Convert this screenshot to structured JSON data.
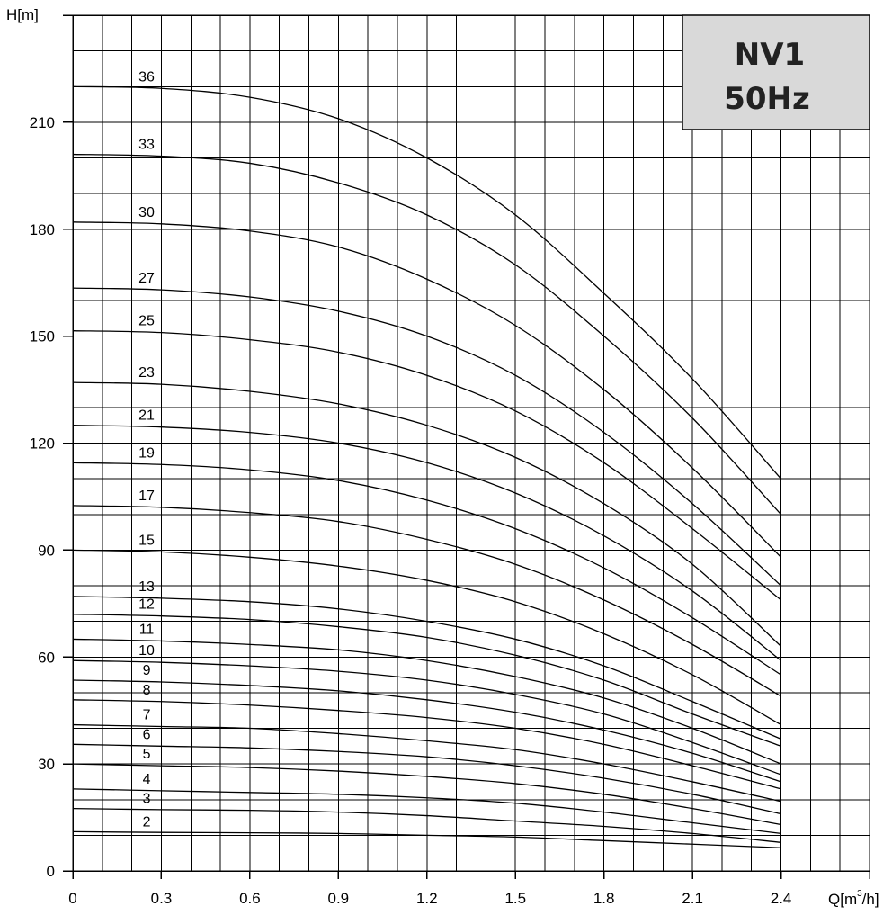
{
  "chart_data": {
    "type": "line",
    "title_box": {
      "line1": "NV1",
      "line2": "50Hz",
      "fill": "#d9d9d9"
    },
    "xlabel": "Q[m³/h]",
    "xlabel_parts": {
      "main": "Q[m",
      "sup": "3",
      "tail": "/h]"
    },
    "ylabel": "H[m]",
    "xlim": [
      0,
      2.7
    ],
    "ylim": [
      0,
      240
    ],
    "x_ticks": [
      0,
      0.3,
      0.6,
      0.9,
      1.2,
      1.5,
      1.8,
      2.1,
      2.4
    ],
    "x_tick_labels": [
      "0",
      "0.3",
      "0.6",
      "0.9",
      "1.2",
      "1.5",
      "1.8",
      "2.1",
      "2.4"
    ],
    "y_ticks": [
      0,
      30,
      60,
      90,
      120,
      150,
      180,
      210
    ],
    "y_tick_labels": [
      "0",
      "30",
      "60",
      "90",
      "120",
      "150",
      "180",
      "210"
    ],
    "grid": true,
    "series": [
      {
        "name": "36",
        "x": [
          0,
          0.3,
          0.6,
          0.9,
          1.2,
          1.5,
          1.8,
          2.1,
          2.4
        ],
        "y": [
          220,
          219.5,
          217,
          211,
          200,
          184,
          162,
          138,
          110
        ]
      },
      {
        "name": "33",
        "x": [
          0,
          0.3,
          0.6,
          0.9,
          1.2,
          1.5,
          1.8,
          2.1,
          2.4
        ],
        "y": [
          201,
          200.5,
          198.5,
          193,
          184,
          170,
          150,
          127,
          100
        ]
      },
      {
        "name": "30",
        "x": [
          0,
          0.3,
          0.6,
          0.9,
          1.2,
          1.5,
          1.8,
          2.1,
          2.4
        ],
        "y": [
          182,
          181.5,
          179.5,
          175,
          166,
          153,
          135,
          113,
          88
        ]
      },
      {
        "name": "27",
        "x": [
          0,
          0.3,
          0.6,
          0.9,
          1.2,
          1.5,
          1.8,
          2.1,
          2.4
        ],
        "y": [
          163.5,
          163,
          161,
          157,
          150,
          139,
          123,
          103,
          80
        ]
      },
      {
        "name": "25",
        "x": [
          0,
          0.3,
          0.6,
          0.9,
          1.2,
          1.5,
          1.8,
          2.1,
          2.4
        ],
        "y": [
          151.5,
          151,
          149,
          145.5,
          139,
          129,
          114.5,
          96,
          76
        ]
      },
      {
        "name": "23",
        "x": [
          0,
          0.3,
          0.6,
          0.9,
          1.2,
          1.5,
          1.8,
          2.1,
          2.4
        ],
        "y": [
          137,
          136.5,
          134.5,
          131,
          125,
          116,
          103,
          86,
          63
        ]
      },
      {
        "name": "21",
        "x": [
          0,
          0.3,
          0.6,
          0.9,
          1.2,
          1.5,
          1.8,
          2.1,
          2.4
        ],
        "y": [
          125,
          124.5,
          123,
          120,
          114.5,
          106,
          94,
          78.5,
          59
        ]
      },
      {
        "name": "19",
        "x": [
          0,
          0.3,
          0.6,
          0.9,
          1.2,
          1.5,
          1.8,
          2.1,
          2.4
        ],
        "y": [
          114.5,
          114,
          112.5,
          109.5,
          104,
          96,
          85,
          71,
          55
        ]
      },
      {
        "name": "17",
        "x": [
          0,
          0.3,
          0.6,
          0.9,
          1.2,
          1.5,
          1.8,
          2.1,
          2.4
        ],
        "y": [
          102.5,
          102,
          100.5,
          98,
          93,
          86,
          76,
          63.5,
          49
        ]
      },
      {
        "name": "15",
        "x": [
          0,
          0.3,
          0.6,
          0.9,
          1.2,
          1.5,
          1.8,
          2.1,
          2.4
        ],
        "y": [
          90,
          89.5,
          88,
          85.5,
          81.5,
          75.5,
          66.5,
          55,
          41
        ]
      },
      {
        "name": "13",
        "x": [
          0,
          0.3,
          0.6,
          0.9,
          1.2,
          1.5,
          1.8,
          2.1,
          2.4
        ],
        "y": [
          77,
          76.5,
          75.5,
          73.5,
          70,
          65,
          57.5,
          47.5,
          37
        ]
      },
      {
        "name": "12",
        "x": [
          0,
          0.3,
          0.6,
          0.9,
          1.2,
          1.5,
          1.8,
          2.1,
          2.4
        ],
        "y": [
          72,
          71.5,
          70.5,
          68.5,
          65.5,
          60.5,
          53.5,
          44,
          35
        ]
      },
      {
        "name": "11",
        "x": [
          0,
          0.3,
          0.6,
          0.9,
          1.2,
          1.5,
          1.8,
          2.1,
          2.4
        ],
        "y": [
          65,
          64.5,
          63.5,
          62,
          59,
          54.5,
          48.5,
          40,
          30
        ]
      },
      {
        "name": "10",
        "x": [
          0,
          0.3,
          0.6,
          0.9,
          1.2,
          1.5,
          1.8,
          2.1,
          2.4
        ],
        "y": [
          59,
          58.5,
          57.5,
          56,
          53.5,
          49.5,
          44,
          36,
          27
        ]
      },
      {
        "name": "9",
        "x": [
          0,
          0.3,
          0.6,
          0.9,
          1.2,
          1.5,
          1.8,
          2.1,
          2.4
        ],
        "y": [
          53.5,
          53,
          52,
          50.5,
          48,
          44.5,
          39.5,
          33,
          25
        ]
      },
      {
        "name": "8",
        "x": [
          0,
          0.3,
          0.6,
          0.9,
          1.2,
          1.5,
          1.8,
          2.1,
          2.4
        ],
        "y": [
          48,
          47.5,
          46.5,
          45,
          43,
          40,
          35.5,
          29.5,
          23
        ]
      },
      {
        "name": "7",
        "x": [
          0,
          0.3,
          0.6,
          0.9,
          1.2,
          1.5,
          1.8,
          2.1,
          2.4
        ],
        "y": [
          41,
          40.5,
          40,
          38.5,
          36.5,
          34,
          30,
          25,
          19.5
        ]
      },
      {
        "name": "6",
        "x": [
          0,
          0.3,
          0.6,
          0.9,
          1.2,
          1.5,
          1.8,
          2.1,
          2.4
        ],
        "y": [
          35.5,
          35,
          34.5,
          33.5,
          32,
          29.5,
          26,
          21.5,
          16
        ]
      },
      {
        "name": "5",
        "x": [
          0,
          0.3,
          0.6,
          0.9,
          1.2,
          1.5,
          1.8,
          2.1,
          2.4
        ],
        "y": [
          30,
          29.5,
          29,
          28,
          26.5,
          24.5,
          21.5,
          17.5,
          13
        ]
      },
      {
        "name": "4",
        "x": [
          0,
          0.3,
          0.6,
          0.9,
          1.2,
          1.5,
          1.8,
          2.1,
          2.4
        ],
        "y": [
          23,
          22.5,
          22,
          21.5,
          20.5,
          19,
          16.5,
          13.5,
          10.5
        ]
      },
      {
        "name": "3",
        "x": [
          0,
          0.3,
          0.6,
          0.9,
          1.2,
          1.5,
          1.8,
          2.1,
          2.4
        ],
        "y": [
          17.5,
          17.2,
          17,
          16.5,
          15.5,
          14,
          12.5,
          10.5,
          8
        ]
      },
      {
        "name": "2",
        "x": [
          0,
          0.3,
          0.6,
          0.9,
          1.2,
          1.5,
          1.8,
          2.1,
          2.4
        ],
        "y": [
          11,
          10.8,
          10.7,
          10.5,
          10,
          9.5,
          8.5,
          7.5,
          6.5
        ]
      }
    ]
  }
}
